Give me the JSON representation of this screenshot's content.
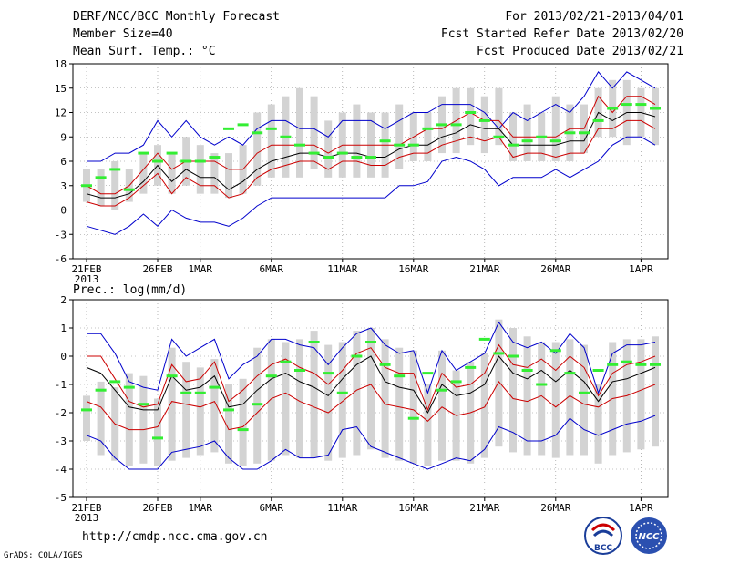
{
  "header": {
    "title": "DERF/NCC/BCC Monthly Forecast",
    "member_size": "Member Size=40",
    "variable": "Mean Surf. Temp.: °C",
    "period": "For 2013/02/21-2013/04/01",
    "started": "Fcst Started Refer Date 2013/02/20",
    "produced": "Fcst Produced Date 2013/02/21"
  },
  "footer": {
    "url": "http://cmdp.ncc.cma.gov.cn",
    "grads": "GrADS: COLA/IGES",
    "logo_bcc_text": "BCC",
    "logo_ncc_text": "NCC"
  },
  "colors": {
    "median": "#000000",
    "percentile": "#cc0000",
    "extreme": "#0000cc",
    "box": "#d3d3d3",
    "observed": "#33ee33"
  },
  "chart_data": [
    {
      "type": "box",
      "title": "Mean Surf. Temp.: °C",
      "ylim": [
        -6,
        18
      ],
      "yticks": [
        -6,
        -3,
        0,
        3,
        6,
        9,
        12,
        15,
        18
      ],
      "grid": true,
      "xlabels": [
        {
          "day": 0,
          "label": "21FEB",
          "sub": "2013"
        },
        {
          "day": 5,
          "label": "26FEB"
        },
        {
          "day": 8,
          "label": "1MAR"
        },
        {
          "day": 13,
          "label": "6MAR"
        },
        {
          "day": 18,
          "label": "11MAR"
        },
        {
          "day": 23,
          "label": "16MAR"
        },
        {
          "day": 28,
          "label": "21MAR"
        },
        {
          "day": 33,
          "label": "26MAR"
        },
        {
          "day": 39,
          "label": "1APR"
        }
      ],
      "series": {
        "max": [
          6,
          6,
          7,
          7,
          8,
          11,
          9,
          11,
          9,
          8,
          9,
          8,
          10,
          11,
          11,
          10,
          10,
          9,
          11,
          11,
          11,
          10,
          11,
          12,
          12,
          13,
          13,
          13,
          12,
          10,
          12,
          11,
          12,
          13,
          12,
          14,
          17,
          15,
          17,
          16,
          15
        ],
        "p90": [
          3,
          2,
          2,
          3,
          5,
          7,
          5,
          6,
          6,
          6,
          5,
          5,
          7,
          8,
          8,
          8,
          8,
          7,
          8,
          8,
          8,
          8,
          8,
          9,
          10,
          10,
          11,
          12,
          11,
          11,
          9,
          9,
          9,
          9,
          10,
          10,
          14,
          12,
          14,
          14,
          13
        ],
        "median": [
          2,
          1.5,
          1.5,
          2,
          3.5,
          5.5,
          3.5,
          5,
          4,
          4,
          2.5,
          3.5,
          5,
          6,
          6.5,
          7,
          7,
          6.5,
          7,
          7,
          6.5,
          6.5,
          7.5,
          8,
          8,
          9,
          9.5,
          10.5,
          10,
          10,
          8,
          8,
          8,
          8,
          8.5,
          8.5,
          12,
          11,
          12,
          12,
          11.5
        ],
        "p10": [
          1,
          0.5,
          0.5,
          1.5,
          3,
          4.5,
          2,
          4,
          3,
          3,
          1.5,
          2,
          4,
          5,
          5.5,
          6,
          6,
          5,
          6,
          6,
          5.5,
          5.5,
          6.5,
          7,
          7,
          8,
          8.5,
          9,
          8.5,
          9,
          6.5,
          7,
          7,
          6.5,
          7,
          7,
          10,
          10,
          11,
          11,
          10
        ],
        "min": [
          -2,
          -2.5,
          -3,
          -2,
          -0.5,
          -2,
          0,
          -1,
          -1.5,
          -1.5,
          -2,
          -1,
          0.5,
          1.5,
          1.5,
          1.5,
          1.5,
          1.5,
          1.5,
          1.5,
          1.5,
          1.5,
          3,
          3,
          3.5,
          6,
          6.5,
          6,
          5,
          3,
          4,
          4,
          4,
          5,
          4,
          5,
          6,
          8,
          9,
          9,
          8
        ],
        "box_low": [
          1,
          0.5,
          0,
          1,
          2,
          3,
          2,
          3,
          2,
          2,
          1.5,
          2,
          3,
          4,
          4,
          4,
          5,
          4,
          4,
          4,
          4,
          4,
          5,
          6,
          6,
          7,
          7,
          8,
          7,
          8,
          6,
          6,
          6,
          6,
          6,
          7,
          9,
          9,
          8,
          9,
          8
        ],
        "box_high": [
          5,
          5,
          6,
          5,
          7,
          8,
          7,
          9,
          8,
          7,
          7,
          8,
          12,
          13,
          14,
          15,
          14,
          11,
          12,
          13,
          12,
          12,
          13,
          12,
          12,
          14,
          15,
          15,
          14,
          15,
          12,
          13,
          12,
          14,
          13,
          13,
          15,
          16,
          16,
          15,
          15
        ],
        "observed": [
          3,
          4,
          5,
          2.5,
          7,
          6,
          7,
          6,
          6,
          6.5,
          10,
          10.5,
          9.5,
          10,
          9,
          8,
          7,
          6.5,
          7,
          6.5,
          6.5,
          8.5,
          8,
          8,
          10,
          10.5,
          10.5,
          12,
          11,
          9,
          8,
          8.5,
          9,
          8.5,
          9.5,
          9.5,
          11,
          12.5,
          13,
          13,
          12.5
        ]
      }
    },
    {
      "type": "box",
      "title": "Prec.: log(mm/d)",
      "ylim": [
        -5,
        2
      ],
      "yticks": [
        -5,
        -4,
        -3,
        -2,
        -1,
        0,
        1,
        2
      ],
      "grid": true,
      "xlabels": [
        {
          "day": 0,
          "label": "21FEB",
          "sub": "2013"
        },
        {
          "day": 5,
          "label": "26FEB"
        },
        {
          "day": 8,
          "label": "1MAR"
        },
        {
          "day": 13,
          "label": "6MAR"
        },
        {
          "day": 18,
          "label": "11MAR"
        },
        {
          "day": 23,
          "label": "16MAR"
        },
        {
          "day": 28,
          "label": "21MAR"
        },
        {
          "day": 33,
          "label": "26MAR"
        },
        {
          "day": 39,
          "label": "1APR"
        }
      ],
      "series": {
        "max": [
          0.8,
          0.8,
          0.1,
          -0.9,
          -1.1,
          -1.2,
          0.6,
          0,
          0.3,
          0.6,
          -0.8,
          -0.3,
          0,
          0.6,
          0.6,
          0.4,
          0.3,
          -0.3,
          0.3,
          0.8,
          1,
          0.4,
          0.1,
          0.2,
          -1.3,
          0.2,
          -0.5,
          -0.2,
          0.1,
          1.2,
          0.5,
          0.3,
          0.5,
          0.1,
          0.8,
          0.3,
          -1.3,
          0.1,
          0.4,
          0.4,
          0.5
        ],
        "p90": [
          0,
          0,
          -0.8,
          -1.6,
          -1.8,
          -1.7,
          -0.3,
          -0.9,
          -0.8,
          -0.2,
          -1.6,
          -1.2,
          -0.7,
          -0.3,
          -0.1,
          -0.4,
          -0.6,
          -1,
          -0.5,
          0.1,
          0.3,
          -0.4,
          -0.6,
          -0.6,
          -1.9,
          -0.6,
          -1.1,
          -1,
          -0.6,
          0.4,
          -0.3,
          -0.4,
          -0.1,
          -0.5,
          0,
          -0.4,
          -1.4,
          -0.6,
          -0.3,
          -0.2,
          0
        ],
        "median": [
          -0.4,
          -0.6,
          -1.2,
          -1.8,
          -1.9,
          -1.9,
          -0.7,
          -1.2,
          -1.1,
          -0.7,
          -1.8,
          -1.7,
          -1.2,
          -0.8,
          -0.6,
          -0.9,
          -1.1,
          -1.4,
          -0.8,
          -0.3,
          0,
          -0.9,
          -1.1,
          -1.2,
          -2,
          -1,
          -1.4,
          -1.3,
          -1,
          0,
          -0.6,
          -0.8,
          -0.5,
          -0.9,
          -0.5,
          -0.9,
          -1.6,
          -0.9,
          -0.8,
          -0.6,
          -0.4
        ],
        "p10": [
          -1.6,
          -1.8,
          -2.4,
          -2.6,
          -2.6,
          -2.5,
          -1.6,
          -1.7,
          -1.8,
          -1.6,
          -2.6,
          -2.5,
          -2,
          -1.5,
          -1.3,
          -1.6,
          -1.8,
          -2,
          -1.6,
          -1.2,
          -1,
          -1.7,
          -1.8,
          -1.9,
          -2.3,
          -1.8,
          -2.1,
          -2,
          -1.8,
          -0.9,
          -1.5,
          -1.6,
          -1.4,
          -1.8,
          -1.4,
          -1.7,
          -1.8,
          -1.5,
          -1.4,
          -1.2,
          -1
        ],
        "min": [
          -2.8,
          -3,
          -3.6,
          -4,
          -4,
          -4,
          -3.4,
          -3.3,
          -3.2,
          -3,
          -3.6,
          -4,
          -4,
          -3.7,
          -3.3,
          -3.6,
          -3.6,
          -3.5,
          -2.6,
          -2.5,
          -3.2,
          -3.4,
          -3.6,
          -3.8,
          -4,
          -3.8,
          -3.6,
          -3.7,
          -3.3,
          -2.5,
          -2.7,
          -3,
          -3,
          -2.8,
          -2.2,
          -2.6,
          -2.8,
          -2.6,
          -2.4,
          -2.3,
          -2.1
        ],
        "box_low": [
          -3,
          -3.5,
          -3.7,
          -3.9,
          -3.8,
          -3.9,
          -3.7,
          -3.6,
          -3.5,
          -3.4,
          -3.8,
          -3.9,
          -3.8,
          -3.7,
          -3.5,
          -3.6,
          -3.6,
          -3.7,
          -3.6,
          -3.5,
          -3.3,
          -3.6,
          -3.7,
          -3.8,
          -3.9,
          -3.7,
          -3.7,
          -3.8,
          -3.6,
          -3.2,
          -3.4,
          -3.5,
          -3.5,
          -3.6,
          -3.5,
          -3.5,
          -3.8,
          -3.5,
          -3.4,
          -3.3,
          -3.2
        ],
        "box_high": [
          -1.4,
          -0.9,
          -1.1,
          -0.6,
          -0.7,
          -1.5,
          0.3,
          -0.2,
          -0.4,
          -0.1,
          -1,
          -0.8,
          0.3,
          0.6,
          0.5,
          0.6,
          0.9,
          0.4,
          0.5,
          0.9,
          1,
          0.6,
          0.3,
          0.2,
          -1,
          0.2,
          -0.5,
          -0.2,
          0.1,
          1.3,
          1,
          0.7,
          0.5,
          0.5,
          0.6,
          0.4,
          -1,
          0.5,
          0.6,
          0.6,
          0.7
        ],
        "observed": [
          -1.9,
          -1.2,
          -0.9,
          -1.1,
          -1.7,
          -2.9,
          -0.7,
          -1.3,
          -1.3,
          -1.1,
          -1.9,
          -2.6,
          -1.7,
          -0.7,
          -0.2,
          -0.5,
          0.5,
          -0.6,
          -1.3,
          0,
          0.5,
          -0.3,
          -0.7,
          -2.2,
          -0.6,
          -1.2,
          -0.9,
          -0.4,
          0.6,
          0.1,
          0,
          -0.5,
          -1,
          0.2,
          -0.6,
          -1.3,
          -0.5,
          -0.3,
          -0.2,
          -0.3,
          -0.3
        ]
      }
    }
  ]
}
